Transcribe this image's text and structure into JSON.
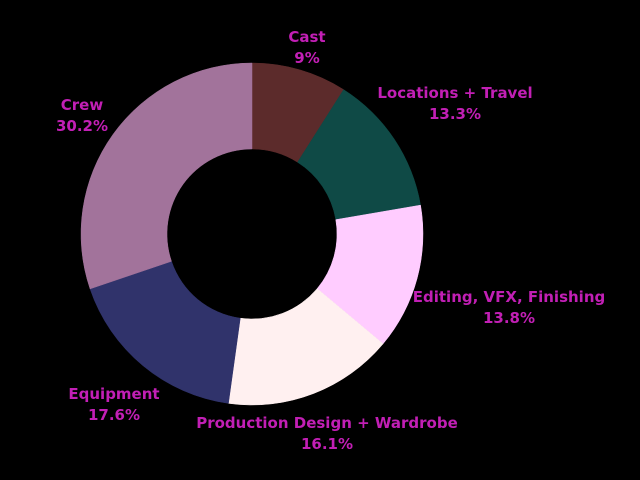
{
  "chart_data": {
    "type": "pie",
    "variant": "donut",
    "title": "",
    "legend": "none",
    "label_color": "#c21fb5",
    "background": "#000000",
    "slices": [
      {
        "label": "Cast",
        "value": 9,
        "value_label": "9%",
        "color": "#5c2b2b"
      },
      {
        "label": "Locations + Travel",
        "value": 13.3,
        "value_label": "13.3%",
        "color": "#0f4a46"
      },
      {
        "label": "Editing, VFX, Finishing",
        "value": 13.8,
        "value_label": "13.8%",
        "color": "#ffccff"
      },
      {
        "label": "Production Design + Wardrobe",
        "value": 16.1,
        "value_label": "16.1%",
        "color": "#fff0f0"
      },
      {
        "label": "Equipment",
        "value": 17.6,
        "value_label": "17.6%",
        "color": "#30336b"
      },
      {
        "label": "Crew",
        "value": 30.2,
        "value_label": "30.2%",
        "color": "#a2739b"
      }
    ]
  }
}
